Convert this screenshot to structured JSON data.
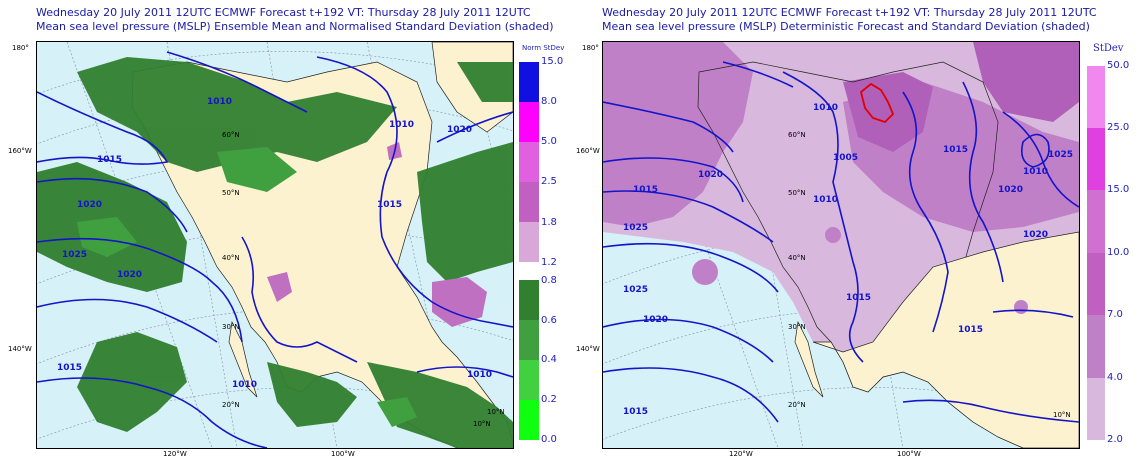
{
  "left_panel": {
    "title_line1": "Wednesday 20 July 2011 12UTC ECMWF Forecast t+192  VT: Thursday 28 July 2011 12UTC",
    "title_line2": "Mean sea level pressure (MSLP) Ensemble Mean and Normalised Standard Deviation (shaded)",
    "colorbar": {
      "title": "Norm StDev",
      "labels": [
        "15.0",
        "8.0",
        "5.0",
        "2.5",
        "1.8",
        "1.2",
        "0.8",
        "0.6",
        "0.4",
        "0.2",
        "0.0"
      ],
      "colors": [
        "#1010e0",
        "#ff00ff",
        "#e060e0",
        "#c060c0",
        "#d8a8d8",
        "#308030",
        "#40a040",
        "#40d040",
        "#30f030",
        "#10ff10"
      ]
    },
    "isobar_labels": [
      "1010",
      "1015",
      "1020",
      "1025",
      "1020",
      "1015",
      "1010",
      "1015",
      "1010",
      "1020",
      "1010"
    ],
    "lat_labels": [
      "60°N",
      "50°N",
      "40°N",
      "30°N",
      "20°N",
      "10°N",
      "10°N"
    ],
    "edge_labels": [
      "180°",
      "160°W",
      "140°W"
    ],
    "bottom_labels": [
      "120°W",
      "100°W"
    ]
  },
  "right_panel": {
    "title_line1": "Wednesday 20 July 2011 12UTC ECMWF Forecast t+192  VT: Thursday 28 July 2011 12UTC",
    "title_line2": "Mean sea level pressure (MSLP) Deterministic Forecast and Standard Deviation (shaded)",
    "colorbar": {
      "title": "StDev",
      "labels": [
        "50.0",
        "25.0",
        "15.0",
        "10.0",
        "7.0",
        "4.0",
        "2.0"
      ],
      "colors": [
        "#f088f0",
        "#e040e0",
        "#d070d0",
        "#c060c0",
        "#c080c8",
        "#d8b8dc"
      ]
    },
    "isobar_labels": [
      "1010",
      "1005",
      "1010",
      "1015",
      "1020",
      "1015",
      "1020",
      "1025",
      "1025",
      "1020",
      "1015",
      "1020",
      "1015",
      "1015",
      "1010",
      "1025"
    ],
    "lat_labels": [
      "60°N",
      "50°N",
      "40°N",
      "30°N",
      "20°N",
      "10°N"
    ],
    "edge_labels": [
      "180°",
      "160°W",
      "140°W"
    ],
    "bottom_labels": [
      "120°W",
      "100°W"
    ]
  },
  "colors": {
    "ocean": "#d6f1f8",
    "land": "#fdf2d0",
    "isobar": "#1414c8",
    "title": "#1a1aa6",
    "red_contour": "#e00000"
  }
}
